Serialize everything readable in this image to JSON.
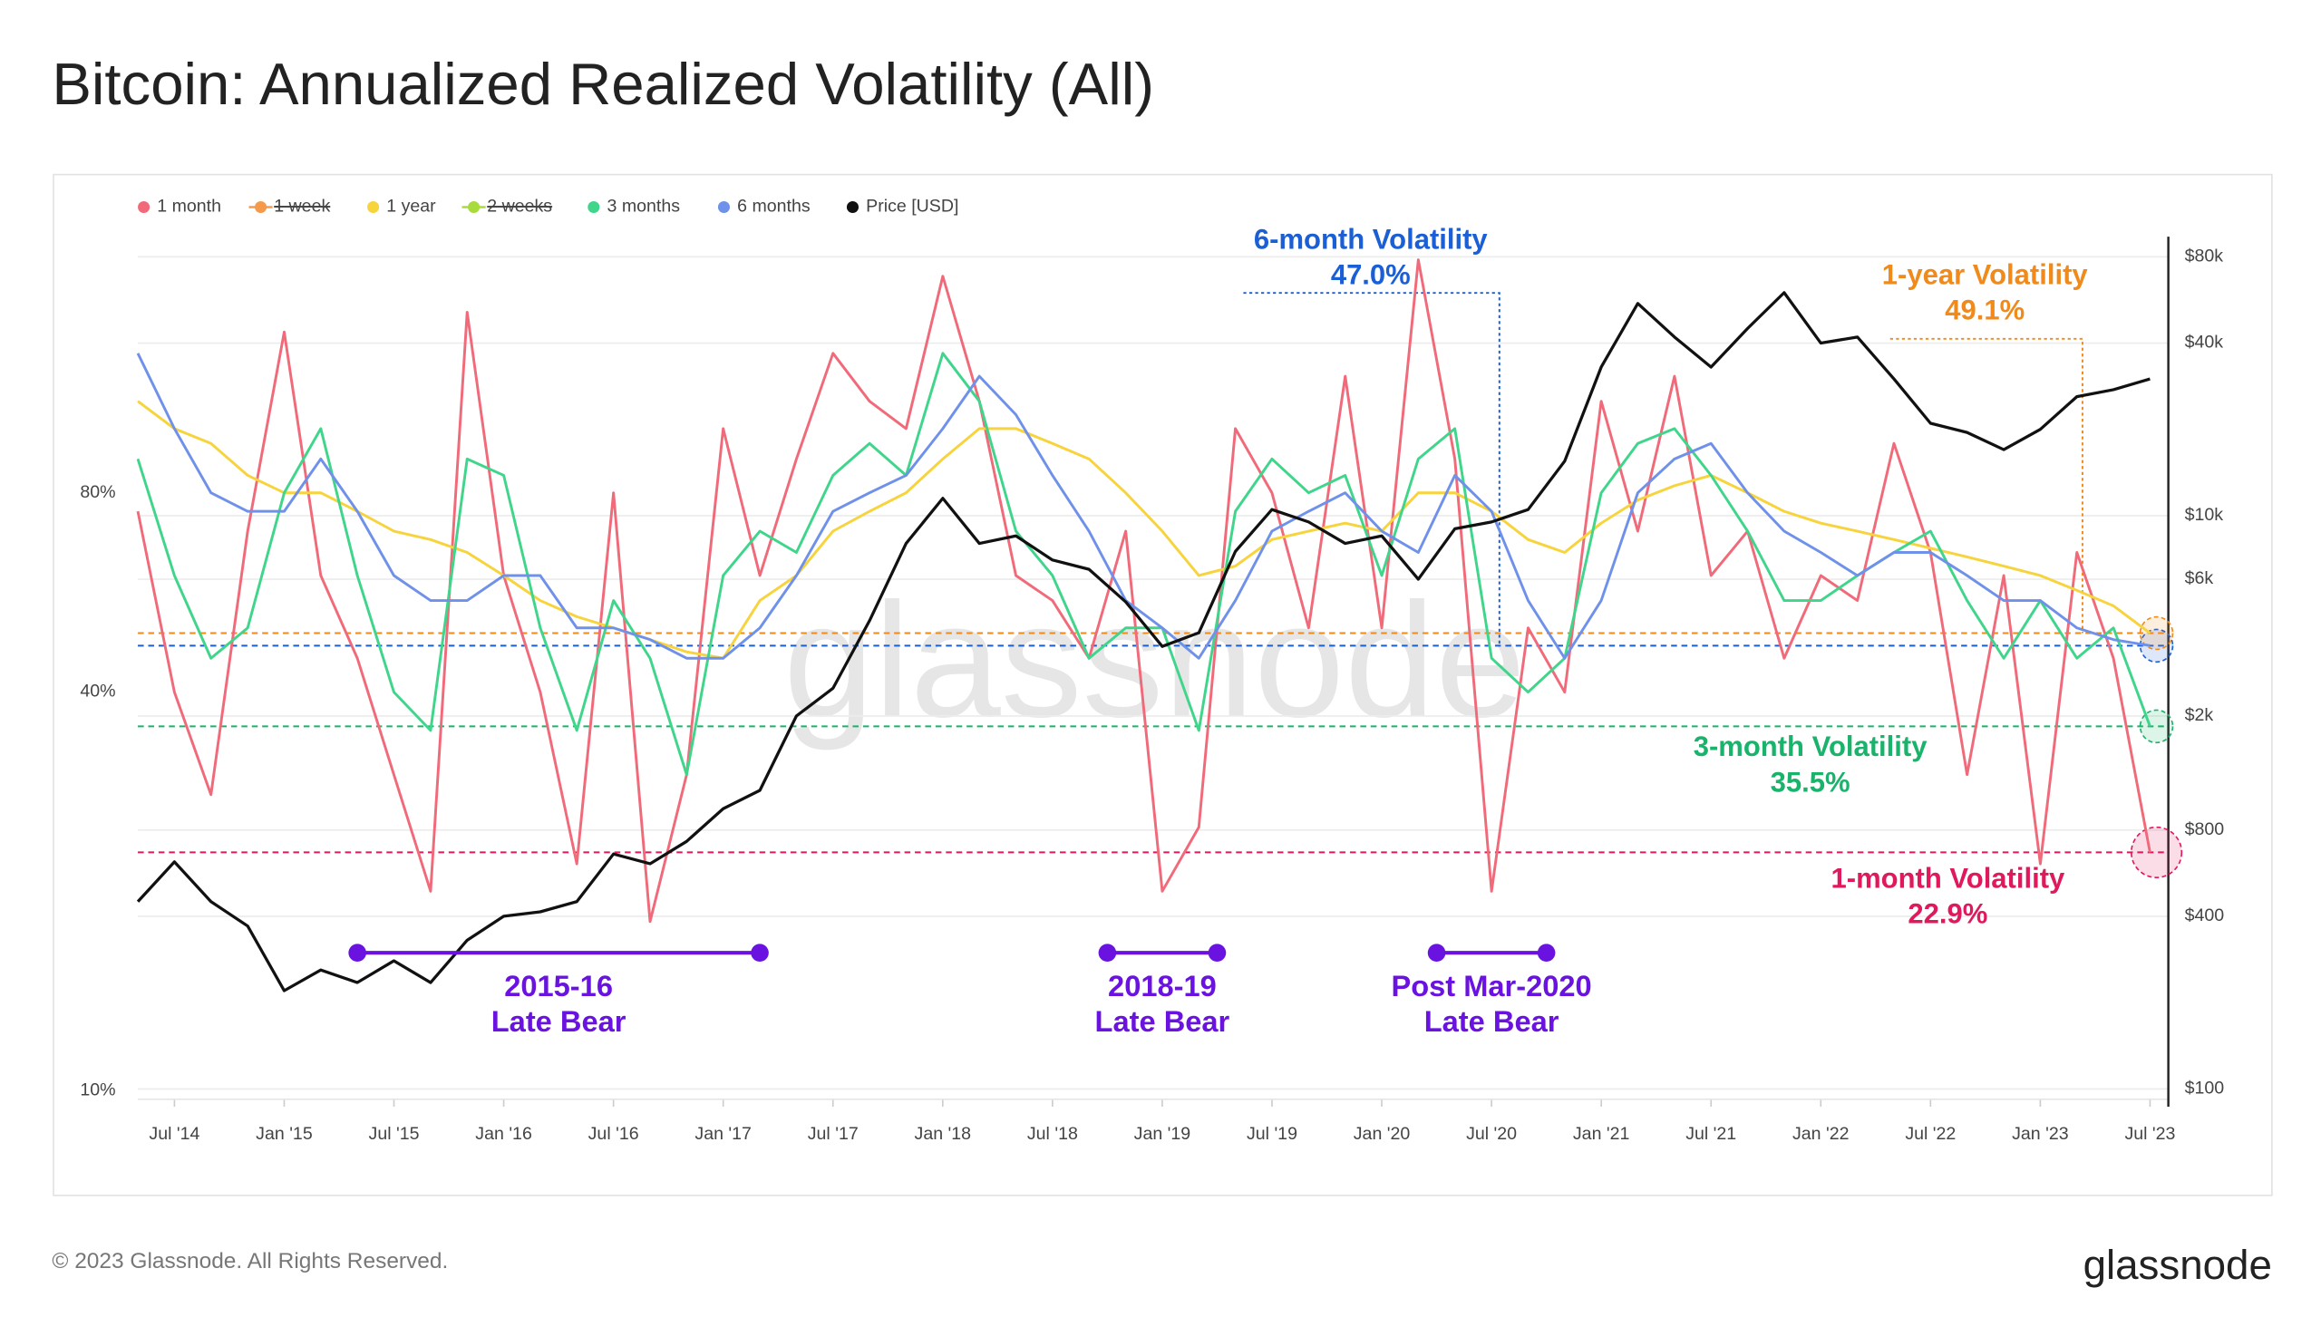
{
  "chart_data": {
    "type": "line",
    "title": "Bitcoin: Annualized Realized Volatility (All)",
    "watermark": "glassnode",
    "footer": "© 2023 Glassnode. All Rights Reserved.",
    "logo": "glassnode",
    "log_scale": true,
    "y2_log_scale": true,
    "grid": true,
    "legend": "top-left",
    "x": [
      "2014-05",
      "2014-07",
      "2014-09",
      "2014-11",
      "2015-01",
      "2015-03",
      "2015-05",
      "2015-07",
      "2015-09",
      "2015-11",
      "2016-01",
      "2016-03",
      "2016-05",
      "2016-07",
      "2016-09",
      "2016-11",
      "2017-01",
      "2017-03",
      "2017-05",
      "2017-07",
      "2017-09",
      "2017-11",
      "2018-01",
      "2018-03",
      "2018-05",
      "2018-07",
      "2018-09",
      "2018-11",
      "2019-01",
      "2019-03",
      "2019-05",
      "2019-07",
      "2019-09",
      "2019-11",
      "2020-01",
      "2020-03",
      "2020-05",
      "2020-07",
      "2020-09",
      "2020-11",
      "2021-01",
      "2021-03",
      "2021-05",
      "2021-07",
      "2021-09",
      "2021-11",
      "2022-01",
      "2022-03",
      "2022-05",
      "2022-07",
      "2022-09",
      "2022-11",
      "2023-01",
      "2023-03",
      "2023-05",
      "2023-07"
    ],
    "xlim": [
      "2014-05",
      "2023-08"
    ],
    "xticks": [
      {
        "value": "2014-07",
        "label": "Jul '14"
      },
      {
        "value": "2015-01",
        "label": "Jan '15"
      },
      {
        "value": "2015-07",
        "label": "Jul '15"
      },
      {
        "value": "2016-01",
        "label": "Jan '16"
      },
      {
        "value": "2016-07",
        "label": "Jul '16"
      },
      {
        "value": "2017-01",
        "label": "Jan '17"
      },
      {
        "value": "2017-07",
        "label": "Jul '17"
      },
      {
        "value": "2018-01",
        "label": "Jan '18"
      },
      {
        "value": "2018-07",
        "label": "Jul '18"
      },
      {
        "value": "2019-01",
        "label": "Jan '19"
      },
      {
        "value": "2019-07",
        "label": "Jul '19"
      },
      {
        "value": "2020-01",
        "label": "Jan '20"
      },
      {
        "value": "2020-07",
        "label": "Jul '20"
      },
      {
        "value": "2021-01",
        "label": "Jan '21"
      },
      {
        "value": "2021-07",
        "label": "Jul '21"
      },
      {
        "value": "2022-01",
        "label": "Jan '22"
      },
      {
        "value": "2022-07",
        "label": "Jul '22"
      },
      {
        "value": "2023-01",
        "label": "Jan '23"
      },
      {
        "value": "2023-07",
        "label": "Jul '23"
      }
    ],
    "ylim": [
      9.7,
      195
    ],
    "yticks": [
      {
        "value": 10,
        "label": "10%"
      },
      {
        "value": 40,
        "label": "40%"
      },
      {
        "value": 80,
        "label": "80%"
      }
    ],
    "y2lim": [
      92,
      94000
    ],
    "y2ticks": [
      {
        "value": 100,
        "label": "$100"
      },
      {
        "value": 400,
        "label": "$400"
      },
      {
        "value": 800,
        "label": "$800"
      },
      {
        "value": 2000,
        "label": "$2k"
      },
      {
        "value": 6000,
        "label": "$6k"
      },
      {
        "value": 10000,
        "label": "$10k"
      },
      {
        "value": 40000,
        "label": "$40k"
      },
      {
        "value": 80000,
        "label": "$80k"
      }
    ],
    "series": [
      {
        "name": "1 month",
        "color": "#f06a7a",
        "values": [
          75,
          40,
          28,
          70,
          140,
          60,
          45,
          30,
          20,
          150,
          60,
          40,
          22,
          80,
          18,
          30,
          100,
          60,
          90,
          130,
          110,
          100,
          170,
          110,
          60,
          55,
          45,
          70,
          20,
          25,
          100,
          80,
          50,
          120,
          50,
          180,
          90,
          20,
          50,
          40,
          110,
          70,
          120,
          60,
          70,
          45,
          60,
          55,
          95,
          65,
          30,
          60,
          22,
          65,
          45,
          22.9
        ]
      },
      {
        "name": "1 week",
        "color": "#f59a4a",
        "hidden": true
      },
      {
        "name": "1 year",
        "color": "#f7d33c",
        "values": [
          110,
          100,
          95,
          85,
          80,
          80,
          75,
          70,
          68,
          65,
          60,
          55,
          52,
          50,
          48,
          46,
          45,
          55,
          60,
          70,
          75,
          80,
          90,
          100,
          100,
          95,
          90,
          80,
          70,
          60,
          62,
          68,
          70,
          72,
          70,
          80,
          80,
          75,
          68,
          65,
          72,
          78,
          82,
          85,
          80,
          75,
          72,
          70,
          68,
          66,
          64,
          62,
          60,
          57,
          54,
          49.1
        ]
      },
      {
        "name": "2 weeks",
        "color": "#a8dc3c",
        "hidden": true
      },
      {
        "name": "3 months",
        "color": "#3fd58a",
        "values": [
          90,
          60,
          45,
          50,
          80,
          100,
          60,
          40,
          35,
          90,
          85,
          50,
          35,
          55,
          45,
          30,
          60,
          70,
          65,
          85,
          95,
          85,
          130,
          110,
          70,
          60,
          45,
          50,
          50,
          35,
          75,
          90,
          80,
          85,
          60,
          90,
          100,
          45,
          40,
          45,
          80,
          95,
          100,
          85,
          70,
          55,
          55,
          60,
          65,
          70,
          55,
          45,
          55,
          45,
          50,
          35.5
        ]
      },
      {
        "name": "6 months",
        "color": "#6f91ea",
        "values": [
          130,
          100,
          80,
          75,
          75,
          90,
          75,
          60,
          55,
          55,
          60,
          60,
          50,
          50,
          48,
          45,
          45,
          50,
          60,
          75,
          80,
          85,
          100,
          120,
          105,
          85,
          70,
          55,
          50,
          45,
          55,
          70,
          75,
          80,
          70,
          65,
          85,
          75,
          55,
          45,
          55,
          80,
          90,
          95,
          80,
          70,
          65,
          60,
          65,
          65,
          60,
          55,
          55,
          50,
          48,
          47.0
        ]
      },
      {
        "name": "Price [USD]",
        "color": "#111111",
        "axis": "y2",
        "values": [
          450,
          620,
          450,
          370,
          220,
          260,
          235,
          280,
          235,
          330,
          400,
          415,
          450,
          660,
          610,
          730,
          950,
          1100,
          2000,
          2500,
          4300,
          8000,
          11500,
          8000,
          8500,
          7000,
          6500,
          5000,
          3500,
          3900,
          7500,
          10500,
          9500,
          8000,
          8500,
          6000,
          9000,
          9500,
          10500,
          15500,
          33000,
          55000,
          42000,
          33000,
          45000,
          60000,
          40000,
          42000,
          30000,
          21000,
          19500,
          17000,
          20000,
          26000,
          27500,
          30000
        ]
      }
    ],
    "annotations": [
      {
        "label": "6-month Volatility",
        "value": 47.0,
        "value_label": "47.0%",
        "color": "#1a5fd6"
      },
      {
        "label": "1-year Volatility",
        "value": 49.1,
        "value_label": "49.1%",
        "color": "#f08a1a"
      },
      {
        "label": "3-month Volatility",
        "value": 35.5,
        "value_label": "35.5%",
        "color": "#19b36b"
      },
      {
        "label": "1-month Volatility",
        "value": 22.9,
        "value_label": "22.9%",
        "color": "#e0185e"
      }
    ],
    "periods": [
      {
        "lines": [
          "2015-16",
          "Late Bear"
        ],
        "start": "2015-05",
        "end": "2017-03"
      },
      {
        "lines": [
          "2018-19",
          "Late Bear"
        ],
        "start": "2018-10",
        "end": "2019-04"
      },
      {
        "lines": [
          "Post Mar-2020",
          "Late Bear"
        ],
        "start": "2020-04",
        "end": "2020-10"
      }
    ],
    "period_color": "#6a12e0"
  }
}
